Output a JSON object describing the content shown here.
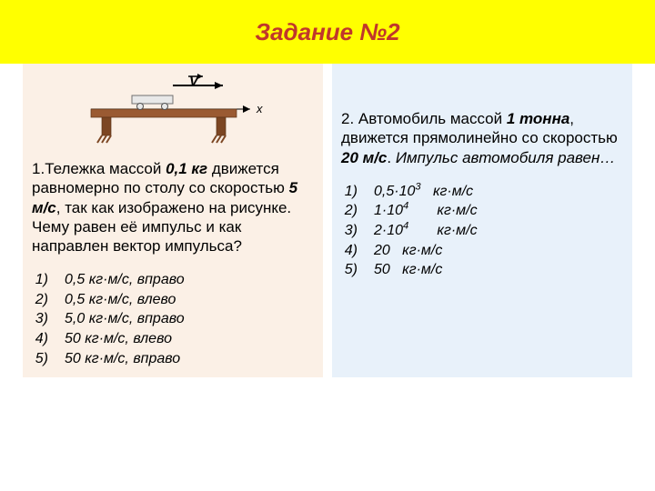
{
  "banner": {
    "title": "Задание №2",
    "background": "#ffff00",
    "title_color": "#c0372b",
    "height": 70,
    "title_fontsize": 26
  },
  "layout": {
    "left_bg": "#fbf0e6",
    "right_bg": "#e8f1fa",
    "body_fontsize": 17,
    "answer_fontsize": 16
  },
  "diagram": {
    "table_top_color": "#9a5a32",
    "table_side_color": "#7c4623",
    "cart_fill": "#e8e8e8",
    "cart_stroke": "#707070",
    "wheel_stroke": "#505050",
    "axis_color": "#000000",
    "v_label": "V",
    "x_label": "x"
  },
  "q1": {
    "lead_num": "1.",
    "text_parts": {
      "p1": "Тележка массой ",
      "mass": "0,1 кг",
      "p2": " движется равномерно по столу со скоростью ",
      "speed": "5 м/с",
      "p3": ", так как изображено на рисунке. Чему равен её импульс и как направлен вектор импульса?"
    },
    "answers": [
      {
        "n": "1)",
        "v": "0,5 кг·м/с,  вправо"
      },
      {
        "n": "2)",
        "v": "0,5 кг·м/с,  влево"
      },
      {
        "n": "3)",
        "v": "5,0 кг·м/с,  вправо"
      },
      {
        "n": "4)",
        "v": "50 кг·м/с,  влево"
      },
      {
        "n": "5)",
        "v": "50 кг·м/с,  вправо"
      }
    ]
  },
  "q2": {
    "text_parts": {
      "p1": "2. Автомобиль массой ",
      "mass": "1 тонна",
      "p2": ", движется прямолинейно со скоростью ",
      "speed": "20 м/с",
      "p3": ". ",
      "tail": "Импульс автомобиля равен…"
    },
    "answers": [
      {
        "n": "1)",
        "base": "0,5·10",
        "exp": "3",
        "unit": "кг·м/с"
      },
      {
        "n": "2)",
        "base": "1·10",
        "exp": "4",
        "unit": "кг·м/с"
      },
      {
        "n": "3)",
        "base": "2·10",
        "exp": "4",
        "unit": "кг·м/с"
      },
      {
        "n": "4)",
        "base": "20",
        "exp": "",
        "unit": "кг·м/с"
      },
      {
        "n": "5)",
        "base": "50",
        "exp": "",
        "unit": "кг·м/с"
      }
    ]
  }
}
